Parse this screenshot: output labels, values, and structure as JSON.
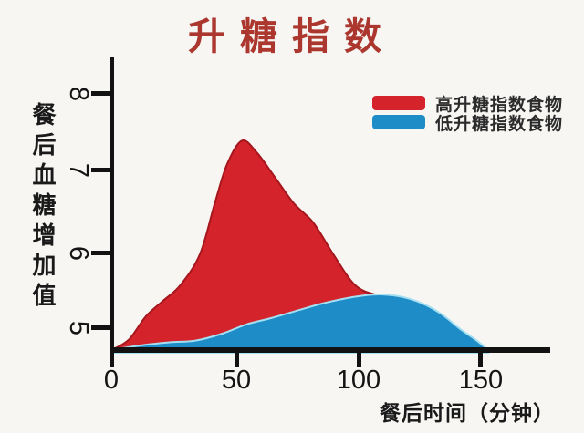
{
  "title": {
    "text": "升糖指数",
    "color": "#ab372f"
  },
  "legend": {
    "items": [
      {
        "label": "高升糖指数食物",
        "color": "#d5232b"
      },
      {
        "label": "低升糖指数食物",
        "color": "#1e8cc7"
      }
    ]
  },
  "axes": {
    "y_label": "餐后血糖增加值",
    "x_label": "餐后时间（分钟）",
    "y_ticks": [
      "8",
      "7",
      "6",
      "5"
    ],
    "x_ticks": [
      "0",
      "50",
      "100",
      "150"
    ]
  },
  "chart_data": {
    "type": "area",
    "title": "升糖指数",
    "xlabel": "餐后时间（分钟）",
    "ylabel": "餐后血糖增加值",
    "x_ticks": [
      0,
      50,
      100,
      150
    ],
    "y_ticks": [
      5,
      6,
      7,
      8
    ],
    "xlim": [
      0,
      178
    ],
    "ylim": [
      4.7,
      8.5
    ],
    "grid": false,
    "legend_position": "upper right",
    "series": [
      {
        "name": "高升糖指数食物",
        "fill": "#d5232b",
        "edge": "#a5161d",
        "points": [
          [
            0,
            4.72
          ],
          [
            7,
            4.85
          ],
          [
            14,
            5.15
          ],
          [
            21,
            5.35
          ],
          [
            28,
            5.55
          ],
          [
            36,
            5.95
          ],
          [
            42,
            6.6
          ],
          [
            47,
            7.1
          ],
          [
            53,
            7.4
          ],
          [
            59,
            7.25
          ],
          [
            66,
            6.95
          ],
          [
            74,
            6.6
          ],
          [
            82,
            6.35
          ],
          [
            90,
            5.95
          ],
          [
            99,
            5.55
          ],
          [
            108,
            5.42
          ],
          [
            118,
            5.35
          ],
          [
            128,
            5.15
          ],
          [
            138,
            4.95
          ],
          [
            148,
            4.72
          ]
        ]
      },
      {
        "name": "低升糖指数食物",
        "fill": "#1e8cc7",
        "edge": "#a5dff2",
        "points": [
          [
            0,
            4.72
          ],
          [
            12,
            4.78
          ],
          [
            24,
            4.82
          ],
          [
            34,
            4.84
          ],
          [
            45,
            4.93
          ],
          [
            55,
            5.05
          ],
          [
            65,
            5.13
          ],
          [
            75,
            5.22
          ],
          [
            85,
            5.31
          ],
          [
            95,
            5.38
          ],
          [
            103,
            5.42
          ],
          [
            110,
            5.43
          ],
          [
            118,
            5.4
          ],
          [
            126,
            5.32
          ],
          [
            134,
            5.18
          ],
          [
            142,
            4.98
          ],
          [
            148,
            4.85
          ],
          [
            153,
            4.72
          ]
        ]
      }
    ]
  }
}
